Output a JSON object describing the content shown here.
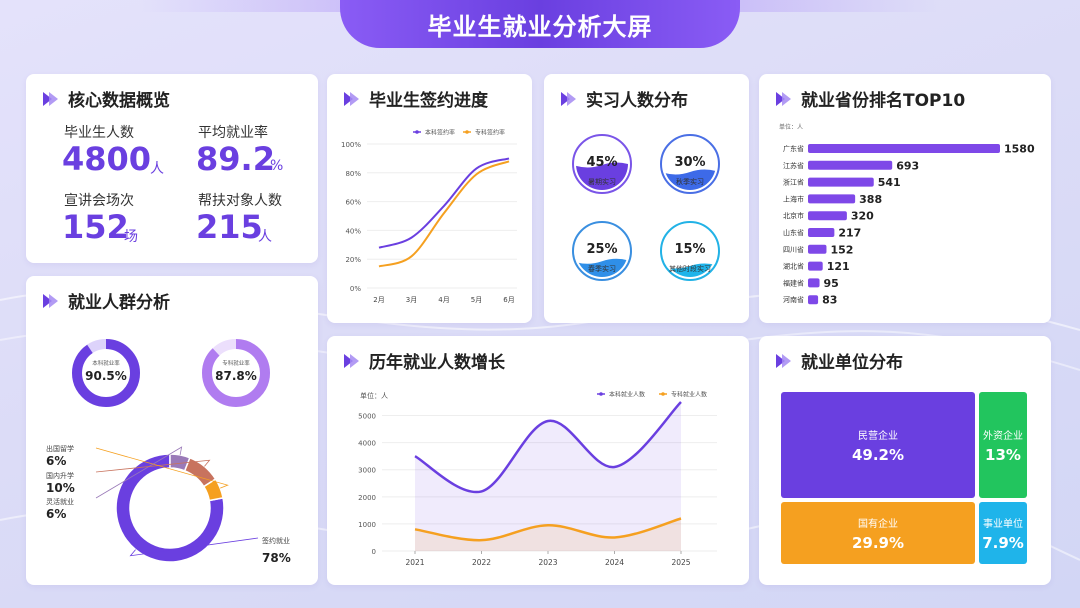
{
  "header": {
    "title": "毕业生就业分析大屏"
  },
  "core": {
    "title": "核心数据概览",
    "stats": [
      {
        "label": "毕业生人数",
        "value": "4800",
        "unit": "人"
      },
      {
        "label": "平均就业率",
        "value": "89.2",
        "unit": "%"
      },
      {
        "label": "宣讲会场次",
        "value": "152",
        "unit": "场"
      },
      {
        "label": "帮扶对象人数",
        "value": "215",
        "unit": "人"
      }
    ]
  },
  "signing": {
    "title": "毕业生签约进度",
    "chart_data": {
      "type": "line",
      "x": [
        "2月",
        "3月",
        "4月",
        "5月",
        "6月"
      ],
      "series": [
        {
          "name": "本科签约率",
          "color": "#6a3fe0",
          "values": [
            28,
            35,
            57,
            83,
            90
          ]
        },
        {
          "name": "专科签约率",
          "color": "#f5a020",
          "values": [
            15,
            22,
            52,
            79,
            88
          ]
        }
      ],
      "ylim": [
        0,
        100
      ],
      "yticks": [
        "0%",
        "20%",
        "40%",
        "60%",
        "80%",
        "100%"
      ]
    }
  },
  "internship": {
    "title": "实习人数分布",
    "items": [
      {
        "label": "暑期实习",
        "value": "45%",
        "percent": 45,
        "color": "#6a3fe0",
        "ring": "#7a55e8"
      },
      {
        "label": "秋季实习",
        "value": "30%",
        "percent": 30,
        "color": "#3d6ae8",
        "ring": "#4a6fe5"
      },
      {
        "label": "春季实习",
        "value": "25%",
        "percent": 25,
        "color": "#2f8fe8",
        "ring": "#3a8fe0"
      },
      {
        "label": "其他时段实习",
        "value": "15%",
        "percent": 15,
        "color": "#1fb4ea",
        "ring": "#22b2e6"
      }
    ]
  },
  "provinces": {
    "title": "就业省份排名TOP10",
    "unit_label": "单位：人",
    "chart_data": {
      "type": "bar",
      "orientation": "horizontal",
      "categories": [
        "广东省",
        "江苏省",
        "浙江省",
        "上海市",
        "北京市",
        "山东省",
        "四川省",
        "湖北省",
        "福建省",
        "河南省"
      ],
      "values": [
        1580,
        693,
        541,
        388,
        320,
        217,
        152,
        121,
        95,
        83
      ]
    }
  },
  "groups": {
    "title": "就业人群分析",
    "rates": [
      {
        "label": "本科就业率",
        "value": "90.5%",
        "percent": 90.5,
        "color": "#6a3fe0",
        "track": "#ddd3fb"
      },
      {
        "label": "专科就业率",
        "value": "87.8%",
        "percent": 87.8,
        "color": "#b07cf0",
        "track": "#ecdffc"
      }
    ],
    "chart_data": {
      "type": "pie",
      "style": "donut",
      "slices": [
        {
          "label": "签约就业",
          "value": 78,
          "display": "78%",
          "color": "#6a3fe0"
        },
        {
          "label": "灵活就业",
          "value": 6,
          "display": "6%",
          "color": "#9a7ab8"
        },
        {
          "label": "国内升学",
          "value": 10,
          "display": "10%",
          "color": "#c8735e"
        },
        {
          "label": "出国留学",
          "value": 6,
          "display": "6%",
          "color": "#f5a020"
        }
      ]
    }
  },
  "yearly": {
    "title": "历年就业人数增长",
    "unit_label": "单位：人",
    "chart_data": {
      "type": "line",
      "x": [
        "2021",
        "2022",
        "2023",
        "2024",
        "2025"
      ],
      "series": [
        {
          "name": "本科就业人数",
          "color": "#6a3fe0",
          "values": [
            3500,
            2200,
            4800,
            3100,
            5500
          ]
        },
        {
          "name": "专科就业人数",
          "color": "#f5a020",
          "values": [
            800,
            400,
            950,
            500,
            1200
          ]
        }
      ],
      "ylim": [
        0,
        5500
      ],
      "yticks": [
        "0",
        "1000",
        "2000",
        "3000",
        "4000",
        "5000"
      ]
    }
  },
  "units": {
    "title": "就业单位分布",
    "cells": [
      {
        "name": "民营企业",
        "value": "49.2%",
        "color": "#6a3fe0"
      },
      {
        "name": "外资企业",
        "value": "13%",
        "color": "#22c55e"
      },
      {
        "name": "国有企业",
        "value": "29.9%",
        "color": "#f5a020"
      },
      {
        "name": "事业单位",
        "value": "7.9%",
        "color": "#1fb4ea"
      }
    ]
  }
}
